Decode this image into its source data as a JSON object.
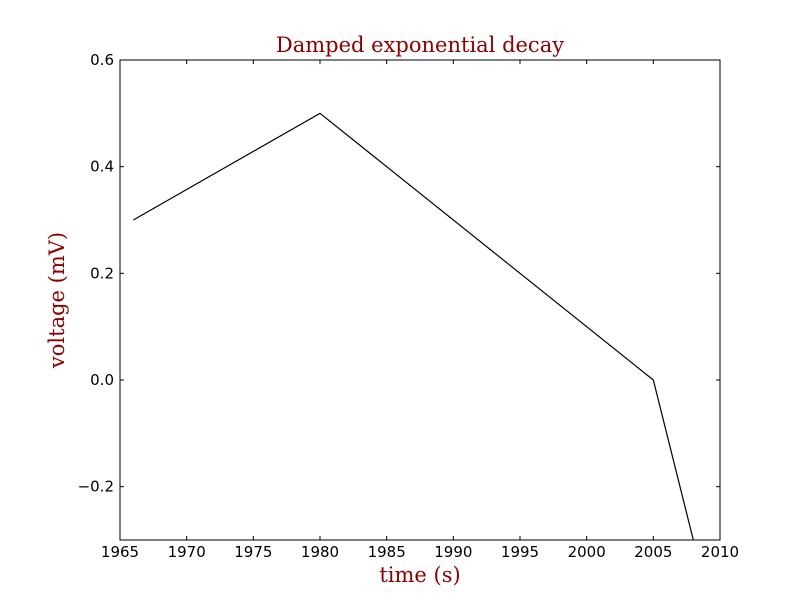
{
  "colors": {
    "text_accent": "#8b0000",
    "line": "#000000",
    "axes": "#000000",
    "background": "#ffffff"
  },
  "chart_data": {
    "type": "line",
    "title": "Damped exponential decay",
    "xlabel": "time (s)",
    "ylabel": "voltage (mV)",
    "xlim": [
      1965,
      2010
    ],
    "ylim": [
      -0.3,
      0.6
    ],
    "grid": false,
    "legend": "none",
    "x_ticks": [
      1965,
      1970,
      1975,
      1980,
      1985,
      1990,
      1995,
      2000,
      2005,
      2010
    ],
    "x_tick_labels": [
      "1965",
      "1970",
      "1975",
      "1980",
      "1985",
      "1990",
      "1995",
      "2000",
      "2005",
      "2010"
    ],
    "y_ticks": [
      -0.2,
      0.0,
      0.2,
      0.4,
      0.6
    ],
    "y_tick_labels": [
      "−0.2",
      "0.0",
      "0.2",
      "0.4",
      "0.6"
    ],
    "series": [
      {
        "x": [
          1966,
          1980,
          2005,
          2008
        ],
        "y": [
          0.3,
          0.5,
          0.0,
          -0.3
        ]
      }
    ]
  }
}
